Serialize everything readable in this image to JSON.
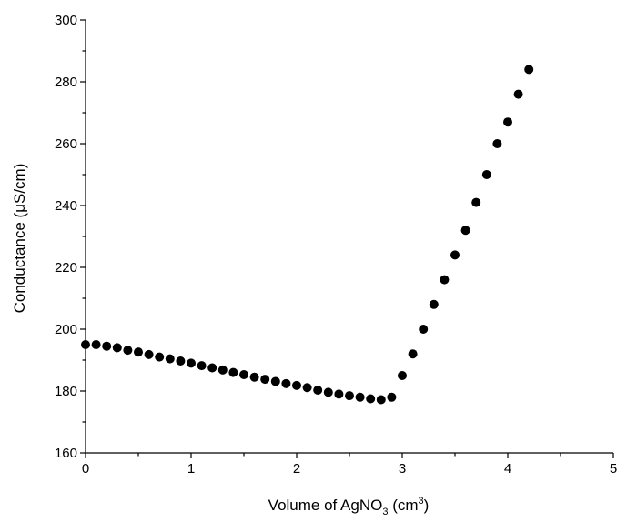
{
  "chart_data": {
    "type": "scatter",
    "title": "",
    "xlabel": "Volume of AgNO",
    "xlabel_subscript": "3",
    "xlabel_unit_prefix": " (cm",
    "xlabel_unit_superscript": "3",
    "xlabel_unit_suffix": ")",
    "ylabel": "Conductance (μS/cm)",
    "xlim": [
      0,
      5
    ],
    "ylim": [
      160,
      300
    ],
    "x_ticks": [
      0,
      1,
      2,
      3,
      4,
      5
    ],
    "y_ticks": [
      160,
      180,
      200,
      220,
      240,
      260,
      280,
      300
    ],
    "grid": false,
    "marker_color": "#000000",
    "series": [
      {
        "x": [
          0,
          0.1,
          0.2,
          0.3,
          0.4,
          0.5,
          0.6,
          0.7,
          0.8,
          0.9,
          1.0,
          1.1,
          1.2,
          1.3,
          1.4,
          1.5,
          1.6,
          1.7,
          1.8,
          1.9,
          2.0,
          2.1,
          2.2,
          2.3,
          2.4,
          2.5,
          2.6,
          2.7,
          2.8,
          2.9,
          3.0,
          3.1,
          3.2,
          3.3,
          3.4,
          3.5,
          3.6,
          3.7,
          3.8,
          3.9,
          4.0,
          4.1,
          4.2
        ],
        "y": [
          195,
          195,
          194.5,
          194,
          193.2,
          192.6,
          191.8,
          191,
          190.4,
          189.7,
          189,
          188.2,
          187.5,
          186.8,
          186,
          185.3,
          184.5,
          183.8,
          183.1,
          182.4,
          181.8,
          181.1,
          180.3,
          179.6,
          179,
          178.5,
          178,
          177.5,
          177.2,
          178,
          185,
          192,
          200,
          208,
          216,
          224,
          232,
          241,
          250,
          260,
          267,
          276,
          284
        ]
      }
    ]
  }
}
